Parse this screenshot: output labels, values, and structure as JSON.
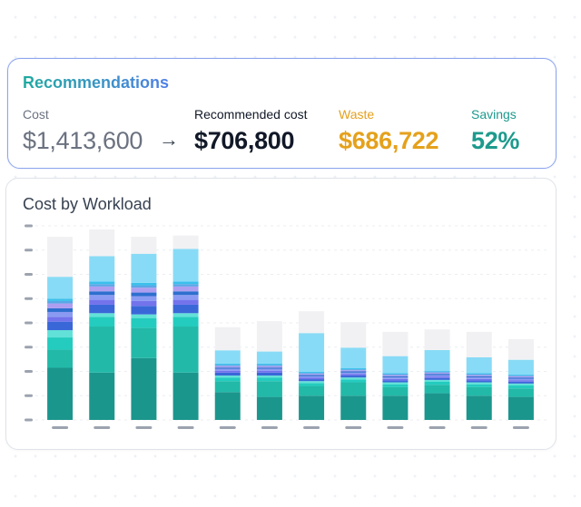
{
  "recommendations": {
    "title": "Recommendations",
    "cost": {
      "label": "Cost",
      "value": "$1,413,600"
    },
    "arrow": "→",
    "recommended": {
      "label": "Recommended cost",
      "value": "$706,800"
    },
    "waste": {
      "label": "Waste",
      "value": "$686,722"
    },
    "savings": {
      "label": "Savings",
      "value": "52%"
    }
  },
  "chart": {
    "title": "Cost by Workload"
  },
  "chart_data": {
    "type": "bar",
    "stacked": true,
    "title": "Cost by Workload",
    "xlabel": "",
    "ylabel": "",
    "grid": true,
    "ylim": [
      0,
      8
    ],
    "categories": [
      "",
      "",
      "",
      "",
      "",
      "",
      "",
      "",
      "",
      "",
      "",
      ""
    ],
    "colors": [
      "#1b968d",
      "#22b9a8",
      "#23ccbf",
      "#62e1d8",
      "#3a67d8",
      "#7373ec",
      "#8a9af2",
      "#2d6fce",
      "#ae9ef0",
      "#5aa7e6",
      "#3bc0ec",
      "#88dbf6",
      "#f1f1f3"
    ],
    "series": [
      {
        "values": [
          2.15,
          1.95,
          2.55,
          1.95,
          1.15,
          0.95,
          1.0,
          1.0,
          1.0,
          1.1,
          1.0,
          0.95
        ]
      },
      {
        "values": [
          0.75,
          1.9,
          1.25,
          1.9,
          0.45,
          0.65,
          0.4,
          0.55,
          0.35,
          0.35,
          0.35,
          0.35
        ]
      },
      {
        "values": [
          0.5,
          0.4,
          0.4,
          0.4,
          0.15,
          0.15,
          0.12,
          0.12,
          0.12,
          0.12,
          0.12,
          0.12
        ]
      },
      {
        "values": [
          0.3,
          0.15,
          0.15,
          0.15,
          0.08,
          0.08,
          0.08,
          0.08,
          0.08,
          0.08,
          0.08,
          0.08
        ]
      },
      {
        "values": [
          0.35,
          0.35,
          0.35,
          0.35,
          0.12,
          0.12,
          0.08,
          0.08,
          0.08,
          0.08,
          0.08,
          0.08
        ]
      },
      {
        "values": [
          0.2,
          0.2,
          0.2,
          0.2,
          0.08,
          0.08,
          0.06,
          0.06,
          0.06,
          0.06,
          0.06,
          0.06
        ]
      },
      {
        "values": [
          0.2,
          0.2,
          0.2,
          0.2,
          0.08,
          0.08,
          0.06,
          0.06,
          0.06,
          0.06,
          0.06,
          0.06
        ]
      },
      {
        "values": [
          0.15,
          0.15,
          0.15,
          0.15,
          0.05,
          0.05,
          0.05,
          0.05,
          0.05,
          0.05,
          0.05,
          0.05
        ]
      },
      {
        "values": [
          0.2,
          0.2,
          0.2,
          0.2,
          0.06,
          0.06,
          0.05,
          0.05,
          0.05,
          0.05,
          0.05,
          0.05
        ]
      },
      {
        "values": [
          0.1,
          0.1,
          0.1,
          0.1,
          0.05,
          0.05,
          0.04,
          0.04,
          0.04,
          0.04,
          0.04,
          0.04
        ]
      },
      {
        "values": [
          0.1,
          0.1,
          0.1,
          0.1,
          0.05,
          0.05,
          0.04,
          0.04,
          0.04,
          0.04,
          0.04,
          0.04
        ]
      },
      {
        "values": [
          0.9,
          1.05,
          1.2,
          1.35,
          0.55,
          0.5,
          1.6,
          0.85,
          0.7,
          0.85,
          0.65,
          0.6
        ]
      },
      {
        "values": [
          1.65,
          1.1,
          0.7,
          0.55,
          0.95,
          1.25,
          0.9,
          1.05,
          1.0,
          0.85,
          1.05,
          0.85
        ]
      }
    ]
  }
}
